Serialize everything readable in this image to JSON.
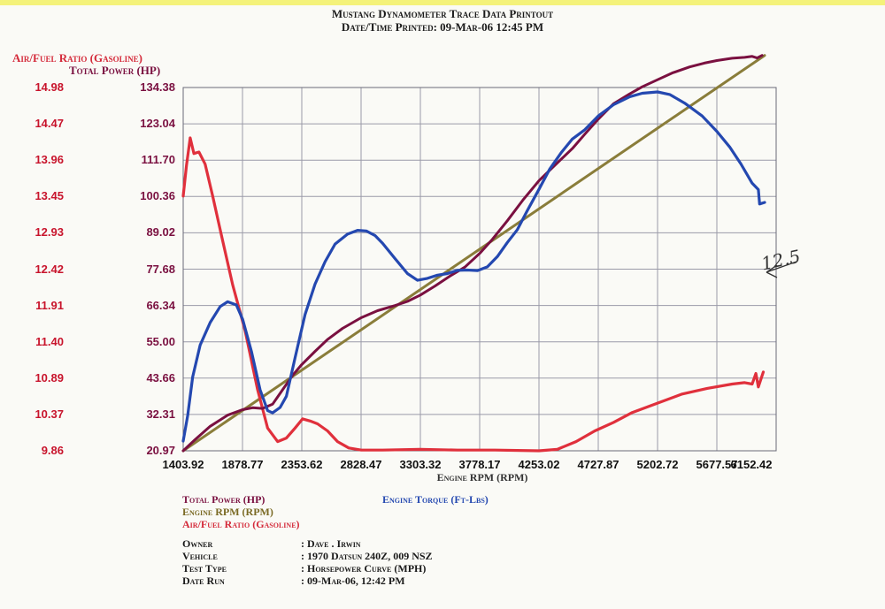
{
  "header": {
    "line1": "Mustang Dynamometer Trace Data Printout",
    "line2": "Date/Time Printed: 09-Mar-06 12:45 PM"
  },
  "axis_titles": {
    "afr": "Air/Fuel Ratio (Gasoline)",
    "power": "Total Power (HP)",
    "x": "Engine RPM (RPM)"
  },
  "legend": {
    "power": "Total Power (HP)",
    "rpm": "Engine RPM (RPM)",
    "afr": "Air/Fuel Ratio (Gasoline)",
    "torque": "Engine Torque (Ft-Lbs)"
  },
  "info": {
    "rows": [
      {
        "key": "Owner",
        "value": ": Dave . Irwin"
      },
      {
        "key": "Vehicle",
        "value": ": 1970 Datsun 240Z, 009 NSZ"
      },
      {
        "key": "Test Type",
        "value": ": Horsepower Curve (MPH)"
      },
      {
        "key": "Date Run",
        "value": ": 09-Mar-06, 12:42 PM"
      }
    ]
  },
  "annotation": "12.5",
  "colors": {
    "power": "#7a1040",
    "rpm": "#8a7d3a",
    "afr": "#e0303c",
    "torque": "#2448b0",
    "grid": "#9a9aa8"
  },
  "chart_data": {
    "type": "line",
    "x_ticks": [
      "1403.92",
      "1878.77",
      "2353.62",
      "2828.47",
      "3303.32",
      "3778.17",
      "4253.02",
      "4727.87",
      "5202.72",
      "5677.57",
      "6152.42"
    ],
    "y_ticks_power": [
      "134.38",
      "123.04",
      "111.70",
      "100.36",
      "89.02",
      "77.68",
      "66.34",
      "55.00",
      "43.66",
      "32.31",
      "20.97"
    ],
    "y_ticks_afr": [
      "14.98",
      "14.47",
      "13.96",
      "13.45",
      "12.93",
      "12.42",
      "11.91",
      "11.40",
      "10.89",
      "10.37",
      "9.86"
    ],
    "xlim": [
      1403.92,
      6152.42
    ],
    "ylim_power": [
      20.97,
      134.38
    ],
    "ylim_afr": [
      9.86,
      14.98
    ],
    "grid": true,
    "series": [
      {
        "key": "afr",
        "name": "Air/Fuel Ratio (Gasoline)",
        "axis": "afr",
        "points": [
          [
            1403.9,
            13.45
          ],
          [
            1430,
            13.88
          ],
          [
            1460,
            14.27
          ],
          [
            1490,
            14.05
          ],
          [
            1530,
            14.07
          ],
          [
            1580,
            13.9
          ],
          [
            1640,
            13.45
          ],
          [
            1720,
            12.82
          ],
          [
            1800,
            12.2
          ],
          [
            1900,
            11.55
          ],
          [
            2000,
            10.72
          ],
          [
            2080,
            10.18
          ],
          [
            2160,
            9.99
          ],
          [
            2230,
            10.04
          ],
          [
            2300,
            10.18
          ],
          [
            2360,
            10.31
          ],
          [
            2420,
            10.28
          ],
          [
            2480,
            10.24
          ],
          [
            2560,
            10.14
          ],
          [
            2640,
            9.99
          ],
          [
            2730,
            9.9
          ],
          [
            2830,
            9.87
          ],
          [
            3000,
            9.87
          ],
          [
            3300,
            9.88
          ],
          [
            3600,
            9.87
          ],
          [
            3900,
            9.87
          ],
          [
            4253,
            9.86
          ],
          [
            4400,
            9.88
          ],
          [
            4550,
            9.99
          ],
          [
            4700,
            10.14
          ],
          [
            4850,
            10.26
          ],
          [
            5000,
            10.4
          ],
          [
            5200,
            10.53
          ],
          [
            5400,
            10.66
          ],
          [
            5600,
            10.74
          ],
          [
            5800,
            10.8
          ],
          [
            5900,
            10.82
          ],
          [
            5960,
            10.8
          ],
          [
            5990,
            10.95
          ],
          [
            6010,
            10.76
          ],
          [
            6050,
            10.97
          ]
        ]
      },
      {
        "key": "torque",
        "name": "Engine Torque (Ft-Lbs)",
        "axis": "power",
        "points": [
          [
            1403.9,
            24
          ],
          [
            1440,
            32
          ],
          [
            1480,
            44
          ],
          [
            1540,
            54
          ],
          [
            1620,
            61
          ],
          [
            1700,
            66
          ],
          [
            1760,
            67.5
          ],
          [
            1830,
            66.5
          ],
          [
            1880,
            62
          ],
          [
            1950,
            52
          ],
          [
            2020,
            40
          ],
          [
            2080,
            33.5
          ],
          [
            2120,
            32.8
          ],
          [
            2180,
            34.5
          ],
          [
            2230,
            38
          ],
          [
            2300,
            50
          ],
          [
            2380,
            63.5
          ],
          [
            2460,
            73
          ],
          [
            2540,
            80
          ],
          [
            2620,
            85.5
          ],
          [
            2720,
            88.6
          ],
          [
            2800,
            89.8
          ],
          [
            2870,
            89.6
          ],
          [
            2940,
            88.2
          ],
          [
            3000,
            85.8
          ],
          [
            3100,
            81
          ],
          [
            3200,
            76.3
          ],
          [
            3280,
            74.2
          ],
          [
            3360,
            74.8
          ],
          [
            3440,
            75.8
          ],
          [
            3520,
            76.3
          ],
          [
            3600,
            77.3
          ],
          [
            3680,
            77.4
          ],
          [
            3760,
            77.2
          ],
          [
            3840,
            78.4
          ],
          [
            3920,
            81.6
          ],
          [
            4000,
            86
          ],
          [
            4080,
            90
          ],
          [
            4160,
            96
          ],
          [
            4253,
            102.6
          ],
          [
            4340,
            109
          ],
          [
            4430,
            114
          ],
          [
            4520,
            118.3
          ],
          [
            4620,
            121.2
          ],
          [
            4727.9,
            125.5
          ],
          [
            4850,
            129
          ],
          [
            4980,
            131.5
          ],
          [
            5080,
            132.6
          ],
          [
            5202.7,
            133.0
          ],
          [
            5300,
            132.2
          ],
          [
            5420,
            129.5
          ],
          [
            5560,
            125.5
          ],
          [
            5677.6,
            120.7
          ],
          [
            5780,
            115.8
          ],
          [
            5870,
            110.5
          ],
          [
            5960,
            104.5
          ],
          [
            6010,
            102.5
          ],
          [
            6020,
            98
          ],
          [
            6060,
            98.5
          ]
        ]
      },
      {
        "key": "power",
        "name": "Total Power (HP)",
        "axis": "power",
        "points": [
          [
            1403.9,
            20.97
          ],
          [
            1500,
            24.5
          ],
          [
            1620,
            28.6
          ],
          [
            1760,
            32.1
          ],
          [
            1878.8,
            33.8
          ],
          [
            1960,
            34.4
          ],
          [
            2040,
            34.2
          ],
          [
            2120,
            35.5
          ],
          [
            2200,
            40
          ],
          [
            2280,
            44.5
          ],
          [
            2353.6,
            47.9
          ],
          [
            2460,
            52
          ],
          [
            2560,
            55.7
          ],
          [
            2680,
            59.2
          ],
          [
            2828.5,
            62.5
          ],
          [
            2960,
            64.7
          ],
          [
            3100,
            66.3
          ],
          [
            3200,
            67.6
          ],
          [
            3303.3,
            69.6
          ],
          [
            3420,
            72.4
          ],
          [
            3540,
            75.5
          ],
          [
            3660,
            78.3
          ],
          [
            3778.2,
            82.6
          ],
          [
            3880,
            87
          ],
          [
            4000,
            92.8
          ],
          [
            4130,
            99.5
          ],
          [
            4253,
            105.3
          ],
          [
            4380,
            110.1
          ],
          [
            4520,
            115.3
          ],
          [
            4620,
            119.8
          ],
          [
            4727.9,
            124.5
          ],
          [
            4850,
            129.3
          ],
          [
            4980,
            132.4
          ],
          [
            5080,
            134.6
          ],
          [
            5202.7,
            136.8
          ],
          [
            5320,
            138.9
          ],
          [
            5460,
            140.8
          ],
          [
            5577,
            142.0
          ],
          [
            5677.6,
            142.8
          ],
          [
            5800,
            143.5
          ],
          [
            5900,
            143.8
          ],
          [
            5960,
            144.1
          ],
          [
            6000,
            143.6
          ],
          [
            6040,
            144.4
          ]
        ]
      },
      {
        "key": "rpm",
        "name": "Engine RPM (RPM)",
        "axis": "power",
        "points": [
          [
            1403.9,
            20.97
          ],
          [
            6060,
            144.4
          ]
        ]
      }
    ]
  }
}
